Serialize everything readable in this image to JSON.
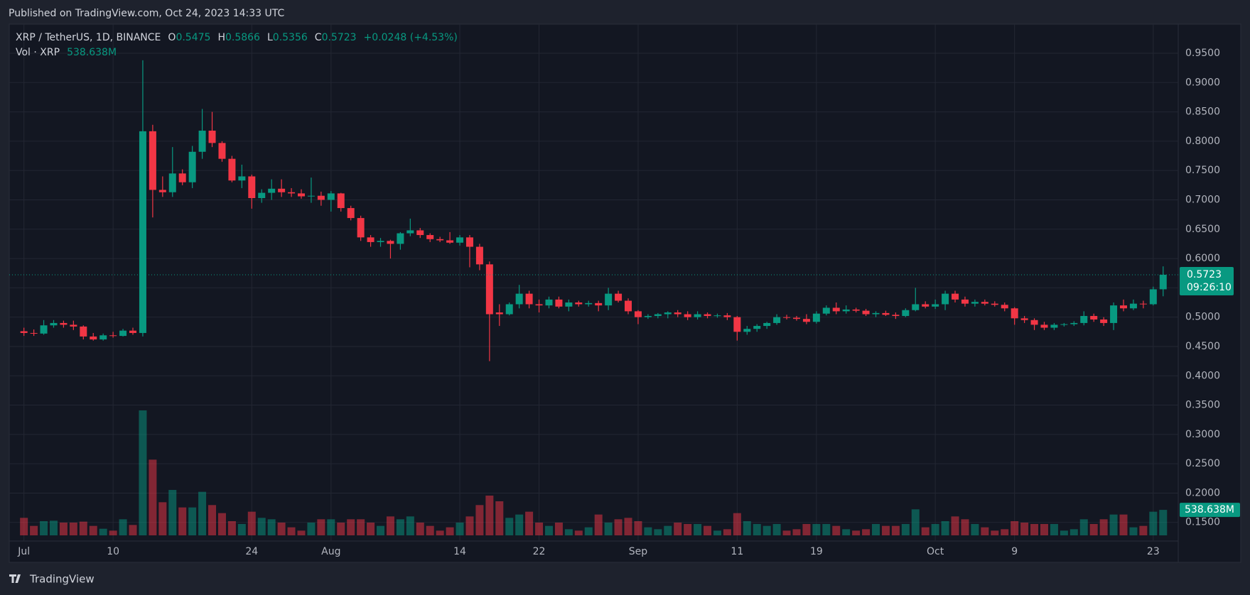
{
  "header": {
    "published": "Published on TradingView.com, Oct 24, 2023 14:33 UTC",
    "footer": "TradingView"
  },
  "chart_data": {
    "type": "candlestick",
    "symbol": "XRP / TetherUS, 1D, BINANCE",
    "ohlc_letters": [
      "O",
      "H",
      "L",
      "C"
    ],
    "change_label": "+0.0248 (+4.53%)",
    "volume_title": "Vol · XRP",
    "volume_label": "538.638M",
    "countdown": "09:26:10",
    "up_color": "#089981",
    "down_color": "#f23645",
    "grid": true,
    "categories": [
      "Jul 1",
      "Jul 2",
      "Jul 3",
      "Jul 4",
      "Jul 5",
      "Jul 6",
      "Jul 7",
      "Jul 8",
      "Jul 9",
      "Jul 10",
      "Jul 11",
      "Jul 12",
      "Jul 13",
      "Jul 14",
      "Jul 15",
      "Jul 16",
      "Jul 17",
      "Jul 18",
      "Jul 19",
      "Jul 20",
      "Jul 21",
      "Jul 22",
      "Jul 23",
      "Jul 24",
      "Jul 25",
      "Jul 26",
      "Jul 27",
      "Jul 28",
      "Jul 29",
      "Jul 30",
      "Jul 31",
      "Aug 1",
      "Aug 2",
      "Aug 3",
      "Aug 4",
      "Aug 5",
      "Aug 6",
      "Aug 7",
      "Aug 8",
      "Aug 9",
      "Aug 10",
      "Aug 11",
      "Aug 12",
      "Aug 13",
      "Aug 14",
      "Aug 15",
      "Aug 16",
      "Aug 17",
      "Aug 18",
      "Aug 19",
      "Aug 20",
      "Aug 21",
      "Aug 22",
      "Aug 23",
      "Aug 24",
      "Aug 25",
      "Aug 26",
      "Aug 27",
      "Aug 28",
      "Aug 29",
      "Aug 30",
      "Aug 31",
      "Sep 1",
      "Sep 2",
      "Sep 3",
      "Sep 4",
      "Sep 5",
      "Sep 6",
      "Sep 7",
      "Sep 8",
      "Sep 9",
      "Sep 10",
      "Sep 11",
      "Sep 12",
      "Sep 13",
      "Sep 14",
      "Sep 15",
      "Sep 16",
      "Sep 17",
      "Sep 18",
      "Sep 19",
      "Sep 20",
      "Sep 21",
      "Sep 22",
      "Sep 23",
      "Sep 24",
      "Sep 25",
      "Sep 26",
      "Sep 27",
      "Sep 28",
      "Sep 29",
      "Sep 30",
      "Oct 1",
      "Oct 2",
      "Oct 3",
      "Oct 4",
      "Oct 5",
      "Oct 6",
      "Oct 7",
      "Oct 8",
      "Oct 9",
      "Oct 10",
      "Oct 11",
      "Oct 12",
      "Oct 13",
      "Oct 14",
      "Oct 15",
      "Oct 16",
      "Oct 17",
      "Oct 18",
      "Oct 19",
      "Oct 20",
      "Oct 21",
      "Oct 22",
      "Oct 23",
      "Oct 24"
    ],
    "open": [
      0.476,
      0.473,
      0.472,
      0.486,
      0.49,
      0.487,
      0.484,
      0.467,
      0.462,
      0.469,
      0.468,
      0.477,
      0.473,
      0.817,
      0.717,
      0.713,
      0.745,
      0.73,
      0.782,
      0.818,
      0.797,
      0.77,
      0.733,
      0.74,
      0.703,
      0.712,
      0.719,
      0.713,
      0.711,
      0.706,
      0.707,
      0.7,
      0.711,
      0.686,
      0.669,
      0.636,
      0.628,
      0.63,
      0.625,
      0.643,
      0.648,
      0.64,
      0.633,
      0.631,
      0.627,
      0.636,
      0.62,
      0.59,
      0.508,
      0.505,
      0.522,
      0.54,
      0.522,
      0.52,
      0.53,
      0.518,
      0.525,
      0.522,
      0.524,
      0.52,
      0.54,
      0.528,
      0.51,
      0.5,
      0.502,
      0.505,
      0.508,
      0.505,
      0.5,
      0.505,
      0.502,
      0.503,
      0.5,
      0.475,
      0.48,
      0.485,
      0.49,
      0.5,
      0.499,
      0.497,
      0.492,
      0.506,
      0.516,
      0.51,
      0.513,
      0.511,
      0.505,
      0.507,
      0.504,
      0.502,
      0.512,
      0.522,
      0.518,
      0.522,
      0.54,
      0.53,
      0.523,
      0.526,
      0.523,
      0.521,
      0.515,
      0.498,
      0.495,
      0.487,
      0.482,
      0.487,
      0.488,
      0.49,
      0.502,
      0.496,
      0.49,
      0.52,
      0.515,
      0.523,
      0.522,
      0.5475
    ],
    "high": [
      0.482,
      0.479,
      0.495,
      0.495,
      0.494,
      0.494,
      0.486,
      0.473,
      0.472,
      0.475,
      0.48,
      0.482,
      0.938,
      0.828,
      0.74,
      0.79,
      0.752,
      0.792,
      0.855,
      0.85,
      0.8,
      0.775,
      0.76,
      0.743,
      0.718,
      0.735,
      0.735,
      0.72,
      0.718,
      0.738,
      0.714,
      0.715,
      0.712,
      0.69,
      0.673,
      0.64,
      0.635,
      0.632,
      0.645,
      0.668,
      0.652,
      0.643,
      0.637,
      0.645,
      0.64,
      0.64,
      0.625,
      0.595,
      0.522,
      0.525,
      0.555,
      0.545,
      0.53,
      0.535,
      0.535,
      0.53,
      0.528,
      0.528,
      0.528,
      0.55,
      0.545,
      0.532,
      0.512,
      0.505,
      0.507,
      0.51,
      0.512,
      0.51,
      0.51,
      0.508,
      0.506,
      0.507,
      0.502,
      0.485,
      0.488,
      0.492,
      0.505,
      0.504,
      0.502,
      0.505,
      0.51,
      0.52,
      0.525,
      0.52,
      0.516,
      0.514,
      0.51,
      0.511,
      0.508,
      0.515,
      0.55,
      0.527,
      0.53,
      0.545,
      0.545,
      0.535,
      0.53,
      0.53,
      0.527,
      0.525,
      0.517,
      0.502,
      0.498,
      0.492,
      0.49,
      0.49,
      0.493,
      0.51,
      0.506,
      0.5,
      0.525,
      0.53,
      0.53,
      0.528,
      0.552,
      0.5866
    ],
    "low": [
      0.468,
      0.468,
      0.47,
      0.482,
      0.482,
      0.478,
      0.462,
      0.46,
      0.46,
      0.465,
      0.467,
      0.47,
      0.467,
      0.67,
      0.705,
      0.705,
      0.725,
      0.72,
      0.77,
      0.79,
      0.765,
      0.73,
      0.72,
      0.685,
      0.695,
      0.7,
      0.705,
      0.705,
      0.702,
      0.695,
      0.69,
      0.68,
      0.68,
      0.665,
      0.63,
      0.62,
      0.62,
      0.6,
      0.615,
      0.638,
      0.635,
      0.628,
      0.628,
      0.625,
      0.622,
      0.585,
      0.58,
      0.425,
      0.485,
      0.503,
      0.515,
      0.515,
      0.508,
      0.515,
      0.515,
      0.51,
      0.518,
      0.518,
      0.51,
      0.512,
      0.525,
      0.505,
      0.488,
      0.497,
      0.498,
      0.498,
      0.5,
      0.495,
      0.496,
      0.498,
      0.499,
      0.495,
      0.46,
      0.47,
      0.475,
      0.48,
      0.487,
      0.496,
      0.494,
      0.488,
      0.489,
      0.503,
      0.505,
      0.506,
      0.508,
      0.502,
      0.5,
      0.502,
      0.497,
      0.5,
      0.51,
      0.515,
      0.514,
      0.512,
      0.525,
      0.518,
      0.518,
      0.52,
      0.518,
      0.51,
      0.487,
      0.49,
      0.478,
      0.478,
      0.478,
      0.484,
      0.485,
      0.486,
      0.492,
      0.485,
      0.478,
      0.51,
      0.512,
      0.515,
      0.52,
      0.5356
    ],
    "close": [
      0.473,
      0.472,
      0.486,
      0.49,
      0.487,
      0.484,
      0.467,
      0.462,
      0.469,
      0.468,
      0.477,
      0.473,
      0.817,
      0.717,
      0.713,
      0.745,
      0.73,
      0.782,
      0.818,
      0.797,
      0.77,
      0.733,
      0.74,
      0.703,
      0.712,
      0.719,
      0.713,
      0.711,
      0.706,
      0.707,
      0.7,
      0.711,
      0.686,
      0.669,
      0.636,
      0.628,
      0.63,
      0.625,
      0.643,
      0.648,
      0.64,
      0.633,
      0.631,
      0.627,
      0.636,
      0.62,
      0.59,
      0.505,
      0.505,
      0.522,
      0.54,
      0.522,
      0.52,
      0.53,
      0.518,
      0.525,
      0.522,
      0.524,
      0.52,
      0.54,
      0.528,
      0.51,
      0.5,
      0.502,
      0.505,
      0.508,
      0.505,
      0.5,
      0.505,
      0.502,
      0.503,
      0.5,
      0.475,
      0.48,
      0.485,
      0.49,
      0.5,
      0.499,
      0.497,
      0.492,
      0.506,
      0.516,
      0.51,
      0.513,
      0.511,
      0.505,
      0.507,
      0.504,
      0.502,
      0.512,
      0.522,
      0.518,
      0.522,
      0.54,
      0.53,
      0.523,
      0.526,
      0.523,
      0.521,
      0.515,
      0.498,
      0.495,
      0.487,
      0.482,
      0.487,
      0.488,
      0.49,
      0.502,
      0.496,
      0.49,
      0.52,
      0.515,
      0.523,
      0.522,
      0.5475,
      0.5723
    ],
    "volume": [
      370,
      200,
      300,
      310,
      270,
      270,
      290,
      200,
      140,
      100,
      340,
      220,
      2640,
      1600,
      700,
      960,
      590,
      590,
      920,
      640,
      470,
      300,
      240,
      500,
      370,
      340,
      270,
      170,
      100,
      270,
      340,
      340,
      270,
      340,
      340,
      270,
      200,
      400,
      340,
      400,
      270,
      200,
      100,
      170,
      270,
      400,
      640,
      840,
      720,
      370,
      440,
      500,
      270,
      200,
      270,
      130,
      100,
      170,
      440,
      270,
      340,
      370,
      300,
      170,
      130,
      200,
      270,
      240,
      240,
      200,
      100,
      130,
      470,
      300,
      240,
      200,
      240,
      100,
      130,
      240,
      240,
      240,
      200,
      130,
      100,
      130,
      240,
      200,
      200,
      240,
      550,
      170,
      240,
      300,
      400,
      340,
      240,
      170,
      100,
      130,
      300,
      270,
      240,
      240,
      240,
      100,
      130,
      340,
      240,
      340,
      440,
      440,
      170,
      200,
      500,
      538.638
    ],
    "ylim": [
      0.117,
      1.0
    ],
    "yticks": [
      {
        "value": 0.15,
        "label": "0.1500"
      },
      {
        "value": 0.2,
        "label": "0.2000"
      },
      {
        "value": 0.25,
        "label": "0.2500"
      },
      {
        "value": 0.3,
        "label": "0.3000"
      },
      {
        "value": 0.35,
        "label": "0.3500"
      },
      {
        "value": 0.4,
        "label": "0.4000"
      },
      {
        "value": 0.45,
        "label": "0.4500"
      },
      {
        "value": 0.5,
        "label": "0.5000"
      },
      {
        "value": 0.55,
        "label": "0.5500"
      },
      {
        "value": 0.6,
        "label": "0.6000"
      },
      {
        "value": 0.65,
        "label": "0.6500"
      },
      {
        "value": 0.7,
        "label": "0.7000"
      },
      {
        "value": 0.75,
        "label": "0.7500"
      },
      {
        "value": 0.8,
        "label": "0.8000"
      },
      {
        "value": 0.85,
        "label": "0.8500"
      },
      {
        "value": 0.9,
        "label": "0.9000"
      },
      {
        "value": 0.95,
        "label": "0.9500"
      }
    ],
    "xticks": [
      {
        "value": "Jul 1",
        "label": "Jul"
      },
      {
        "value": "Jul 10",
        "label": "10"
      },
      {
        "value": "Jul 24",
        "label": "24"
      },
      {
        "value": "Aug 1",
        "label": "Aug"
      },
      {
        "value": "Aug 14",
        "label": "14"
      },
      {
        "value": "Aug 22",
        "label": "22"
      },
      {
        "value": "Sep 1",
        "label": "Sep"
      },
      {
        "value": "Sep 11",
        "label": "11"
      },
      {
        "value": "Sep 19",
        "label": "19"
      },
      {
        "value": "Oct 1",
        "label": "Oct"
      },
      {
        "value": "Oct 9",
        "label": "9"
      },
      {
        "value": "Oct 23",
        "label": "23"
      }
    ]
  }
}
